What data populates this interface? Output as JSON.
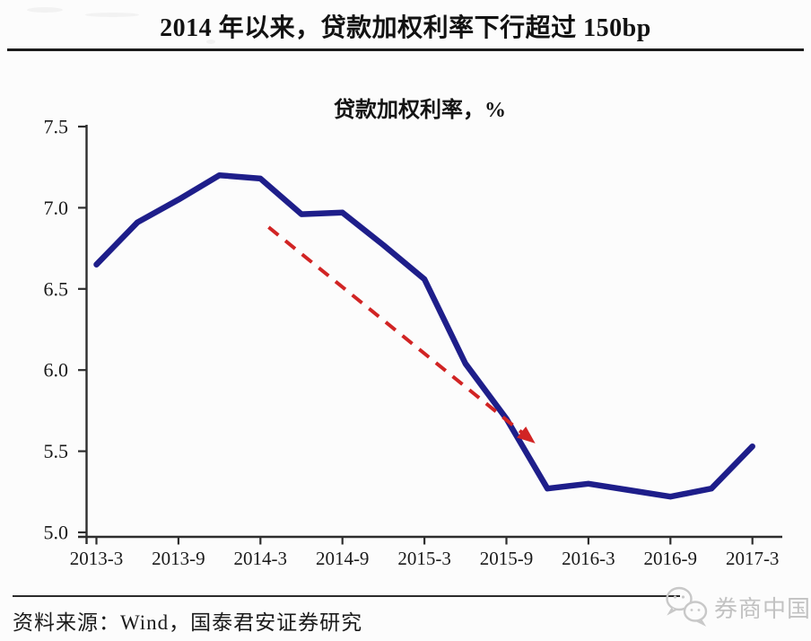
{
  "header": {
    "title": "2014 年以来，贷款加权利率下行超过 150bp"
  },
  "chart_data": {
    "type": "line",
    "title": "贷款加权利率，%",
    "x": [
      "2013-3",
      "2013-6",
      "2013-9",
      "2013-12",
      "2014-3",
      "2014-6",
      "2014-9",
      "2014-12",
      "2015-3",
      "2015-6",
      "2015-9",
      "2015-12",
      "2016-3",
      "2016-6",
      "2016-9",
      "2016-12",
      "2017-3"
    ],
    "values": [
      6.65,
      6.91,
      7.05,
      7.2,
      7.18,
      6.96,
      6.97,
      6.77,
      6.56,
      6.04,
      5.7,
      5.27,
      5.3,
      5.26,
      5.22,
      5.27,
      5.53
    ],
    "x_tick_labels": [
      "2013-3",
      "2013-9",
      "2014-3",
      "2014-9",
      "2015-3",
      "2015-9",
      "2016-3",
      "2016-9",
      "2017-3"
    ],
    "y_ticks": [
      5.0,
      5.5,
      6.0,
      6.5,
      7.0,
      7.5
    ],
    "ylim": [
      5.0,
      7.5
    ],
    "grid": false,
    "legend": "none",
    "line_color": "#1e1e8a",
    "axis_color": "#2e2e2e",
    "annotation_arrow": {
      "color": "#d12424",
      "style": "dashed",
      "from": {
        "x_index": 4.2,
        "value": 6.88
      },
      "to": {
        "x_index": 10.5,
        "value": 5.59
      }
    }
  },
  "footer": {
    "source": "资料来源：Wind，国泰君安证券研究",
    "watermark": "券商中国"
  }
}
